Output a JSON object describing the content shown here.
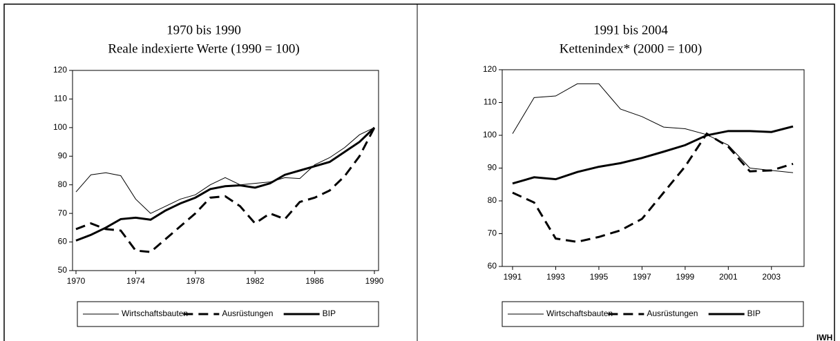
{
  "chart_data": [
    {
      "type": "line",
      "title": "1970 bis 1990",
      "subtitle": "Reale indexierte Werte (1990 = 100)",
      "x": [
        1970,
        1971,
        1972,
        1973,
        1974,
        1975,
        1976,
        1977,
        1978,
        1979,
        1980,
        1981,
        1982,
        1983,
        1984,
        1985,
        1986,
        1987,
        1988,
        1989,
        1990
      ],
      "series": [
        {
          "name": "Wirtschaftsbauten",
          "color": "#000000",
          "line_style": "solid",
          "line_width": 1,
          "values": [
            77.5,
            83.5,
            84.2,
            83.2,
            75,
            70,
            72.5,
            75,
            76.5,
            80,
            82.5,
            80,
            80.5,
            81,
            82.5,
            82.2,
            87,
            89.5,
            93,
            97.5,
            100
          ]
        },
        {
          "name": "Ausrüstungen",
          "color": "#000000",
          "line_style": "dashed",
          "line_width": 3,
          "values": [
            64.5,
            66.5,
            64.5,
            64,
            57,
            56.5,
            61,
            65.5,
            70,
            75.5,
            76,
            72.5,
            66.5,
            70,
            68,
            74,
            75.5,
            78,
            83,
            90,
            100
          ]
        },
        {
          "name": "BIP",
          "color": "#000000",
          "line_style": "solid",
          "line_width": 3,
          "values": [
            60.5,
            62.5,
            65,
            68,
            68.5,
            67.8,
            71,
            73.5,
            75.5,
            78.5,
            79.5,
            79.8,
            79,
            80.5,
            83.5,
            85,
            86.5,
            88,
            91.5,
            95,
            100
          ]
        }
      ],
      "xlim": [
        1970,
        1990
      ],
      "xticks": [
        1970,
        1974,
        1978,
        1982,
        1986,
        1990
      ],
      "ylim": [
        50,
        120
      ],
      "yticks": [
        50,
        60,
        70,
        80,
        90,
        100,
        110,
        120
      ],
      "grid": false,
      "legend": "bottom"
    },
    {
      "type": "line",
      "title": "1991 bis 2004",
      "subtitle": "Kettenindex* (2000 = 100)",
      "x": [
        1991,
        1992,
        1993,
        1994,
        1995,
        1996,
        1997,
        1998,
        1999,
        2000,
        2001,
        2002,
        2003,
        2004
      ],
      "series": [
        {
          "name": "Wirtschaftsbauten",
          "color": "#000000",
          "line_style": "solid",
          "line_width": 1,
          "values": [
            100.5,
            111.5,
            112,
            115.7,
            115.7,
            108,
            105.7,
            102.5,
            102,
            100.2,
            97,
            90,
            89.3,
            88.6
          ]
        },
        {
          "name": "Ausrüstungen",
          "color": "#000000",
          "line_style": "dashed",
          "line_width": 3,
          "values": [
            82.5,
            79.5,
            68.5,
            67.5,
            69,
            71,
            74.5,
            82.5,
            90.5,
            100.5,
            96.5,
            89,
            89.3,
            91.3
          ]
        },
        {
          "name": "BIP",
          "color": "#000000",
          "line_style": "solid",
          "line_width": 3,
          "values": [
            85.3,
            87.2,
            86.6,
            88.8,
            90.4,
            91.5,
            93.1,
            95,
            97,
            100,
            101.3,
            101.3,
            101,
            102.7
          ]
        }
      ],
      "xlim": [
        1991,
        2004
      ],
      "xticks": [
        1991,
        1993,
        1995,
        1997,
        1999,
        2001,
        2003
      ],
      "ylim": [
        60,
        120
      ],
      "yticks": [
        60,
        70,
        80,
        90,
        100,
        110,
        120
      ],
      "grid": false,
      "legend": "bottom"
    }
  ],
  "source": "IWH"
}
